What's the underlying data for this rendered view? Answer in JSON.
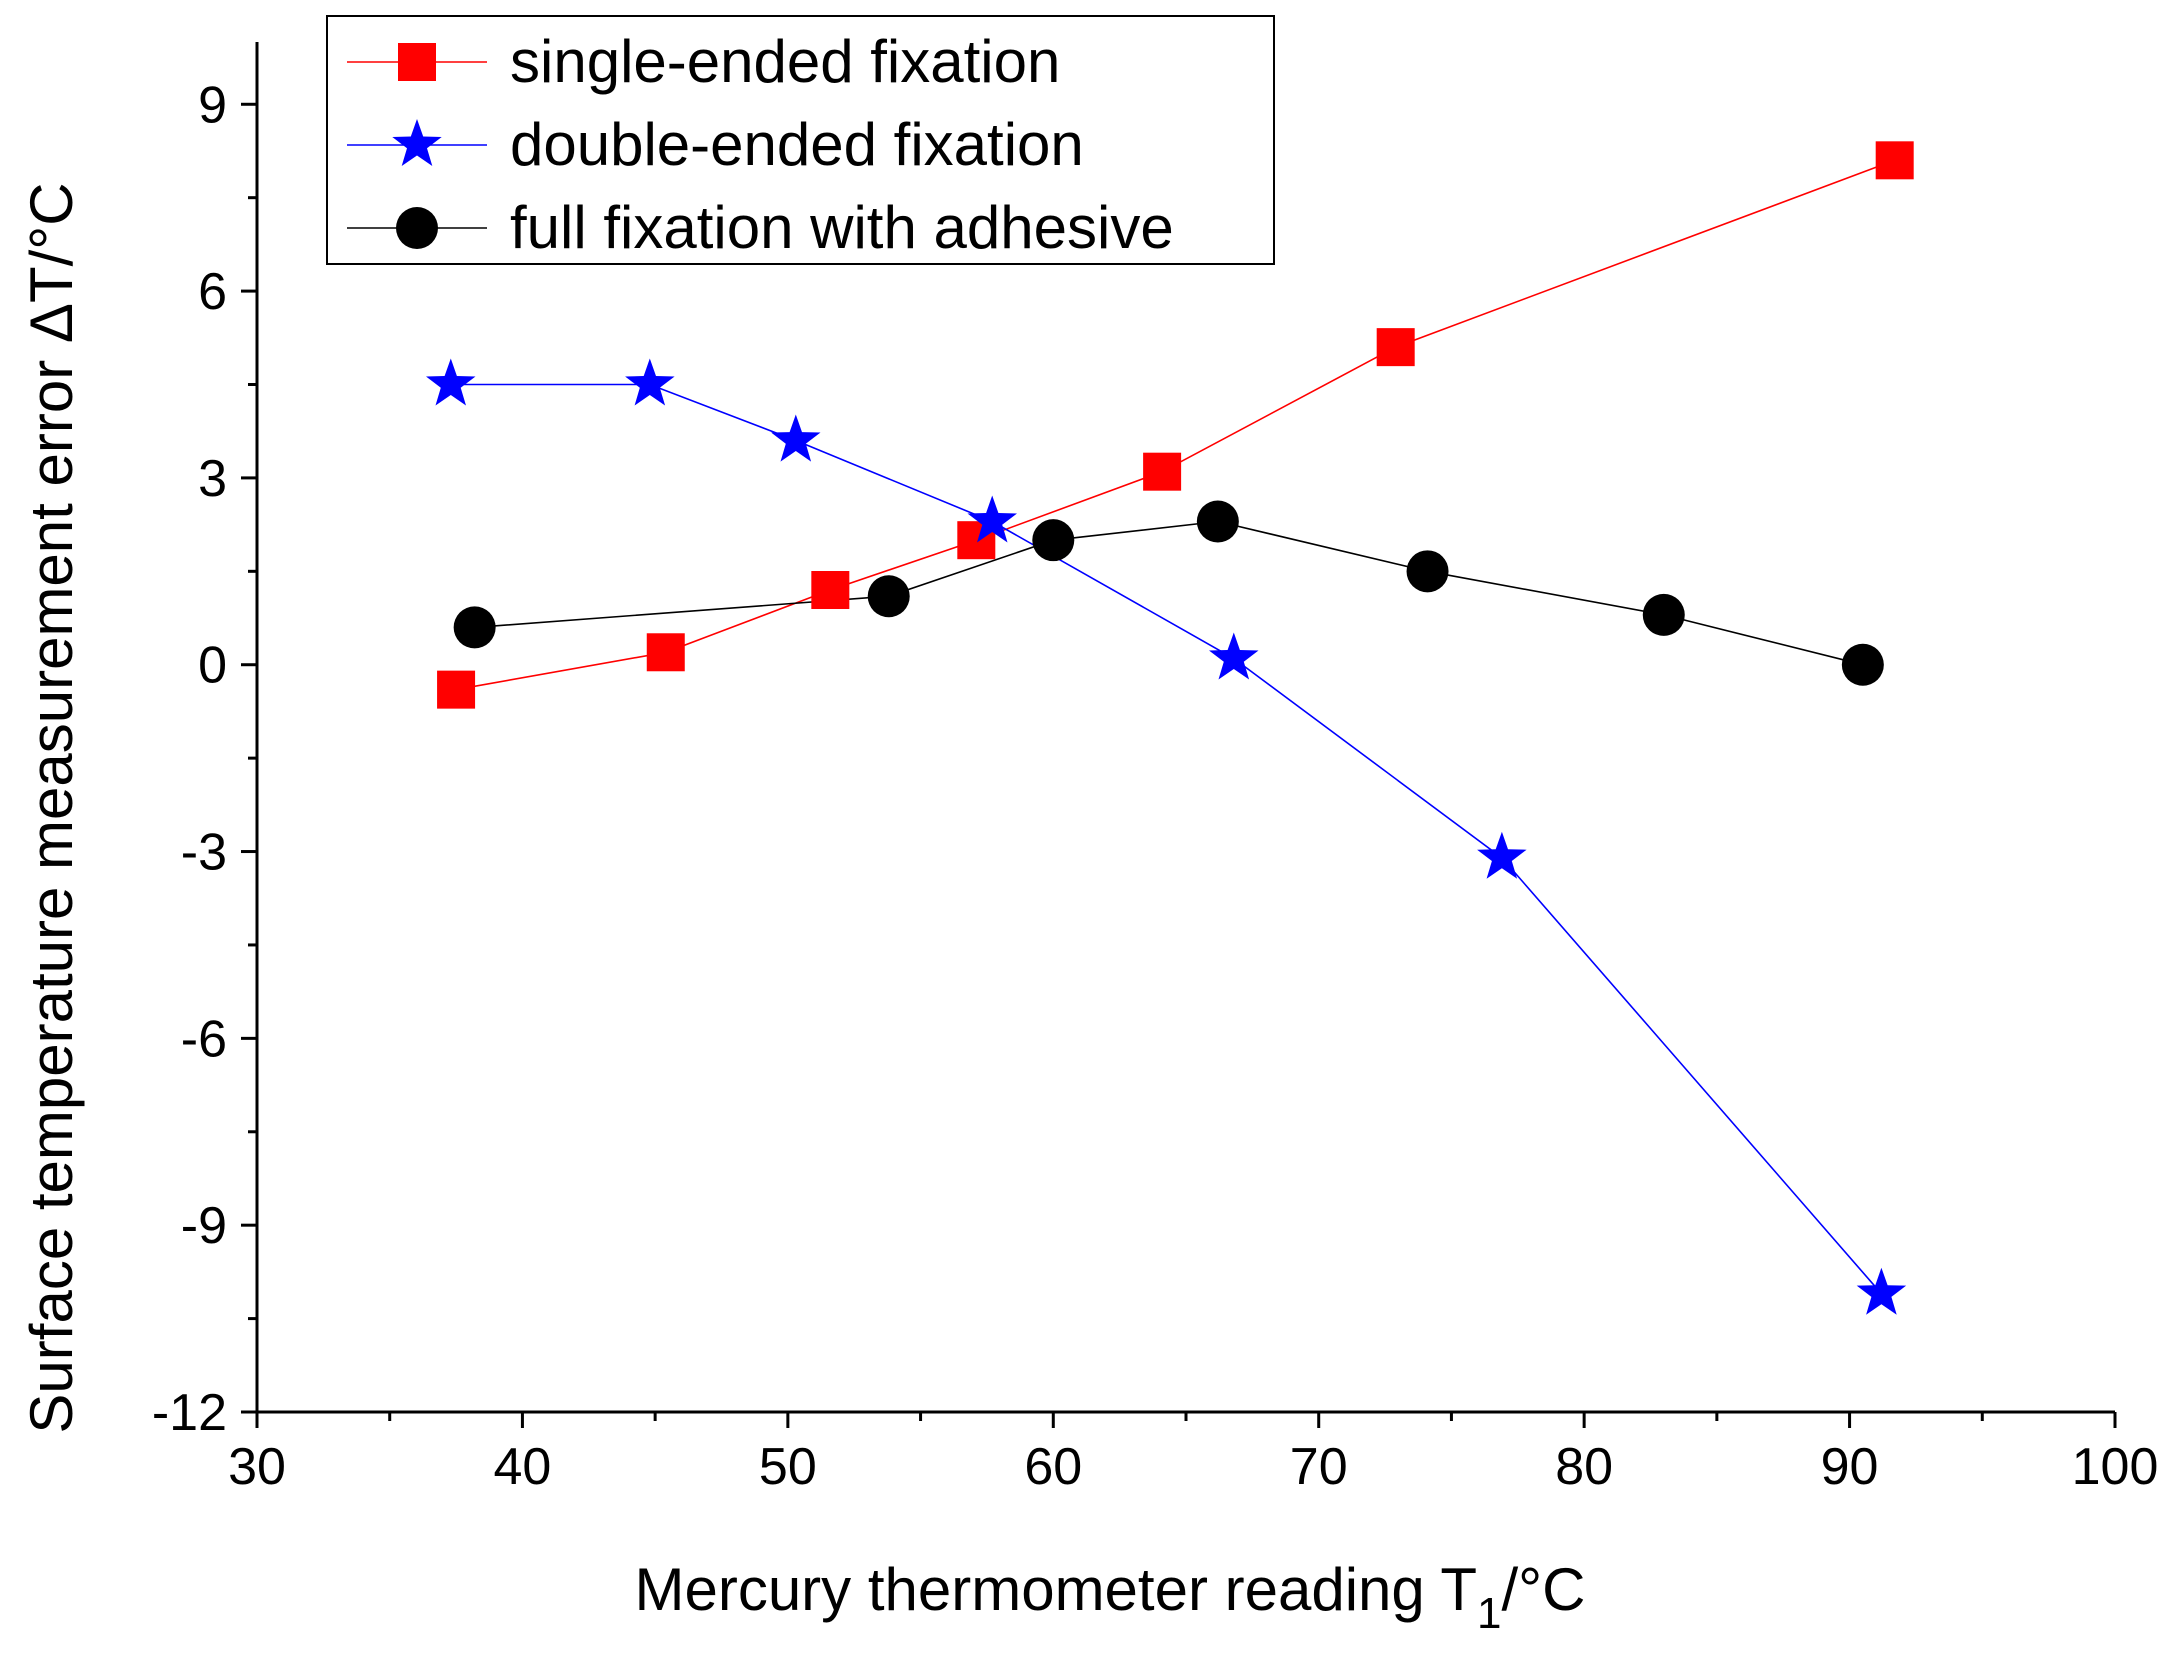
{
  "chart_data": {
    "type": "line",
    "xlabel": "Mercury thermometer reading T",
    "xlabel_subscript": "1",
    "xlabel_suffix": "/°C",
    "ylabel": "Surface temperature measurement error ΔT/°C",
    "xlim": [
      30,
      100
    ],
    "ylim": [
      -12,
      10
    ],
    "xticks": [
      30,
      40,
      50,
      60,
      70,
      80,
      90,
      100
    ],
    "yticks": [
      -12,
      -9,
      -6,
      -3,
      0,
      3,
      6,
      9
    ],
    "xtick_labels": [
      "30",
      "40",
      "50",
      "60",
      "70",
      "80",
      "90",
      "100"
    ],
    "ytick_labels": [
      "-12",
      "-9",
      "-6",
      "-3",
      "0",
      "3",
      "6",
      "9"
    ],
    "legend_position": "top-left",
    "series": [
      {
        "name": "single-ended fixation",
        "color": "#ff0000",
        "marker": "square",
        "x": [
          37.5,
          45.4,
          51.6,
          57.1,
          64.1,
          72.9,
          91.7
        ],
        "y": [
          -0.4,
          0.2,
          1.2,
          2.0,
          3.1,
          5.1,
          8.1
        ]
      },
      {
        "name": "double-ended fixation",
        "color": "#0000ff",
        "marker": "star",
        "x": [
          37.3,
          44.8,
          50.3,
          57.7,
          66.8,
          76.9,
          91.2
        ],
        "y": [
          4.5,
          4.5,
          3.6,
          2.3,
          0.1,
          -3.1,
          -10.1
        ]
      },
      {
        "name": "full fixation with adhesive",
        "color": "#000000",
        "marker": "circle",
        "x": [
          38.2,
          53.8,
          60.0,
          66.2,
          74.1,
          83.0,
          90.5
        ],
        "y": [
          0.6,
          1.1,
          2.0,
          2.3,
          1.5,
          0.8,
          0.0
        ]
      }
    ]
  }
}
